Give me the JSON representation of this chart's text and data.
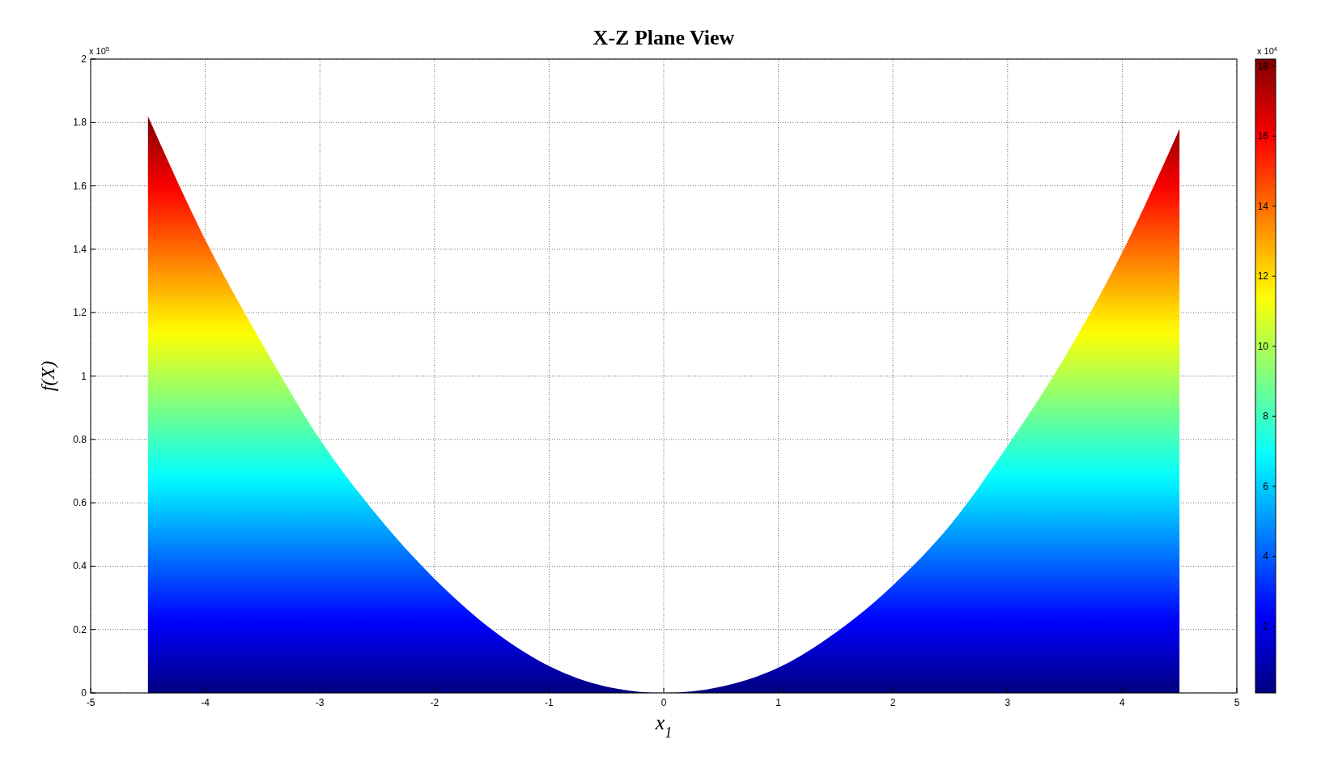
{
  "chart_data": {
    "type": "area",
    "title": "X-Z Plane View",
    "xlabel": "x$_{1}$",
    "ylabel": "f(X)",
    "x": [
      -4.5,
      -4,
      -3.5,
      -3,
      -2.5,
      -2,
      -1.5,
      -1,
      -0.5,
      0,
      0.5,
      1,
      1.5,
      2,
      2.5,
      3,
      3.5,
      4,
      4.5
    ],
    "values": [
      1.82,
      1.43,
      1.1,
      0.8,
      0.56,
      0.36,
      0.2,
      0.085,
      0.02,
      0,
      0.02,
      0.08,
      0.19,
      0.34,
      0.53,
      0.78,
      1.06,
      1.39,
      1.78
    ],
    "xlim": [
      -5,
      5
    ],
    "xticks": [
      -5,
      -4,
      -3,
      -2,
      -1,
      0,
      1,
      2,
      3,
      4,
      5
    ],
    "ylim": [
      0,
      2
    ],
    "yticks": [
      0,
      0.2,
      0.4,
      0.6,
      0.8,
      1,
      1.2,
      1.4,
      1.6,
      1.8,
      2
    ],
    "clim": [
      0.1,
      18.2
    ],
    "cticks": [
      2,
      4,
      6,
      8,
      10,
      12,
      14,
      16,
      18
    ],
    "annotations": [
      "x 10$^{5}$",
      "x 10$^{4}$"
    ],
    "grid": true
  }
}
